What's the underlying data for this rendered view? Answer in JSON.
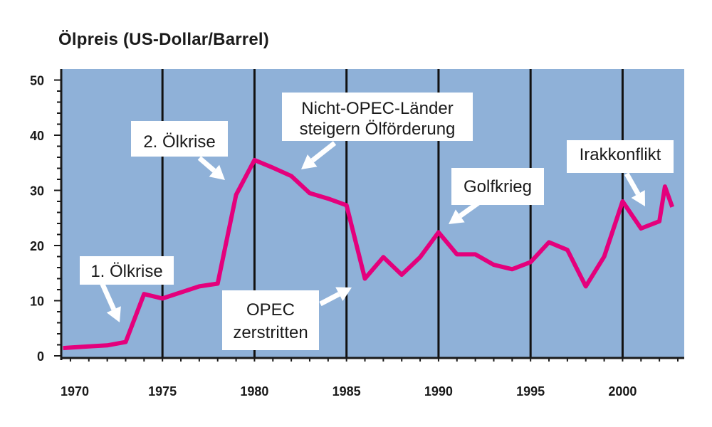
{
  "chart_data": {
    "type": "line",
    "title": "Ölpreis (US-Dollar/Barrel)",
    "xlabel": "",
    "ylabel": "",
    "xlim": [
      1969.5,
      2003
    ],
    "ylim": [
      0,
      51
    ],
    "x_ticks": [
      1970,
      1975,
      1980,
      1985,
      1990,
      1995,
      2000
    ],
    "y_ticks": [
      0,
      10,
      20,
      30,
      40,
      50
    ],
    "grid": "vertical",
    "background_color": "#8fb1d8",
    "line_color": "#e4007c",
    "series": [
      {
        "x": [
          1969.6,
          1970,
          1971,
          1972,
          1973,
          1974,
          1974.5,
          1975,
          1976,
          1977,
          1978,
          1979,
          1980,
          1981,
          1982,
          1983,
          1984,
          1985,
          1986,
          1987,
          1988,
          1989,
          1990,
          1991,
          1992,
          1993,
          1994,
          1995,
          1996,
          1997,
          1998,
          1999,
          2000,
          2001,
          2002,
          2002.3,
          2002.7
        ],
        "y": [
          1.4,
          1.5,
          1.7,
          1.9,
          2.5,
          11.2,
          10.8,
          10.4,
          11.5,
          12.6,
          13.1,
          29.2,
          35.5,
          34.1,
          32.6,
          29.5,
          28.5,
          27.3,
          14.0,
          17.9,
          14.7,
          17.9,
          22.4,
          18.4,
          18.4,
          16.5,
          15.7,
          17.0,
          20.6,
          19.2,
          12.6,
          18.0,
          28.0,
          23.1,
          24.4,
          30.7,
          27.0
        ]
      }
    ],
    "annotations": [
      {
        "text": "1. Ölkrise",
        "x": 1973,
        "y": 2.5
      },
      {
        "text": "2. Ölkrise",
        "x": 1979,
        "y": 30
      },
      {
        "text": "Nicht-OPEC-Länder steigern Ölförderung",
        "lines": [
          "Nicht-OPEC-Länder",
          "steigern Ölförderung"
        ],
        "x": 1983,
        "y": 34
      },
      {
        "text": "Golfkrieg",
        "x": 1990.8,
        "y": 24.5
      },
      {
        "text": "Irakkonflikt",
        "x": 2001.8,
        "y": 26.2
      },
      {
        "text": "OPEC zerstritten",
        "lines": [
          "OPEC",
          "zerstritten"
        ],
        "x": 1986,
        "y": 14
      }
    ]
  }
}
